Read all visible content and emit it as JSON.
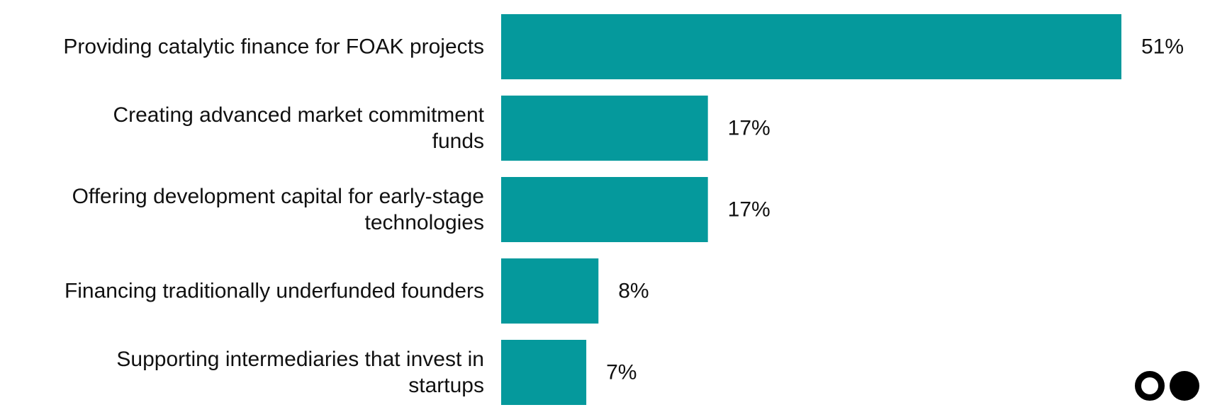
{
  "chart_data": {
    "type": "bar",
    "orientation": "horizontal",
    "categories": [
      [
        "Providing catalytic finance for FOAK projects"
      ],
      [
        "Creating advanced market commitment",
        "funds"
      ],
      [
        "Offering development capital for early-stage",
        "technologies"
      ],
      [
        "Financing traditionally underfunded founders"
      ],
      [
        "Supporting intermediaries that invest in",
        "startups"
      ]
    ],
    "values": [
      51,
      17,
      17,
      8,
      7
    ],
    "value_labels": [
      "51%",
      "17%",
      "17%",
      "8%",
      "7%"
    ],
    "unit": "%",
    "title": "",
    "xlabel": "",
    "ylabel": "",
    "xlim": [
      0,
      51
    ],
    "grid": false,
    "bar_color": "#05999C"
  },
  "logo": {
    "name": "two-dots-logo",
    "color": "#000000"
  }
}
